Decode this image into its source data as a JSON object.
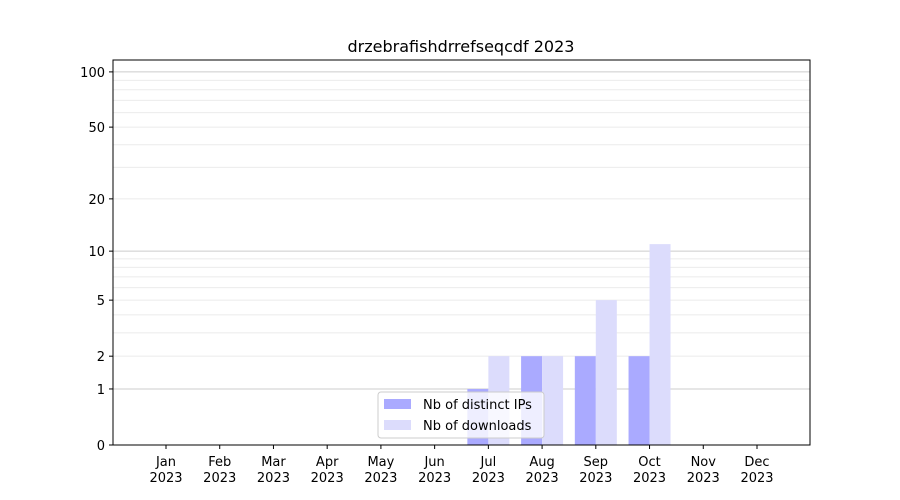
{
  "chart_data": {
    "type": "bar",
    "title": "drzebrafishdrrefseqcdf 2023",
    "xlabel": "",
    "ylabel": "",
    "yscale": "log(1+y)",
    "ylim": [
      0,
      116
    ],
    "yticks": [
      0,
      1,
      2,
      5,
      10,
      20,
      50,
      100
    ],
    "grid": true,
    "legend_position": "bottom-center",
    "categories": [
      "Jan\n2023",
      "Feb\n2023",
      "Mar\n2023",
      "Apr\n2023",
      "May\n2023",
      "Jun\n2023",
      "Jul\n2023",
      "Aug\n2023",
      "Sep\n2023",
      "Oct\n2023",
      "Nov\n2023",
      "Dec\n2023"
    ],
    "series": [
      {
        "name": "Nb of distinct IPs",
        "color": "#aaaaff",
        "values": [
          0,
          0,
          0,
          0,
          0,
          0,
          1,
          2,
          2,
          2,
          0,
          0
        ]
      },
      {
        "name": "Nb of downloads",
        "color": "#dcdcfc",
        "values": [
          0,
          0,
          0,
          0,
          0,
          0,
          2,
          2,
          5,
          11,
          0,
          0
        ]
      }
    ]
  }
}
